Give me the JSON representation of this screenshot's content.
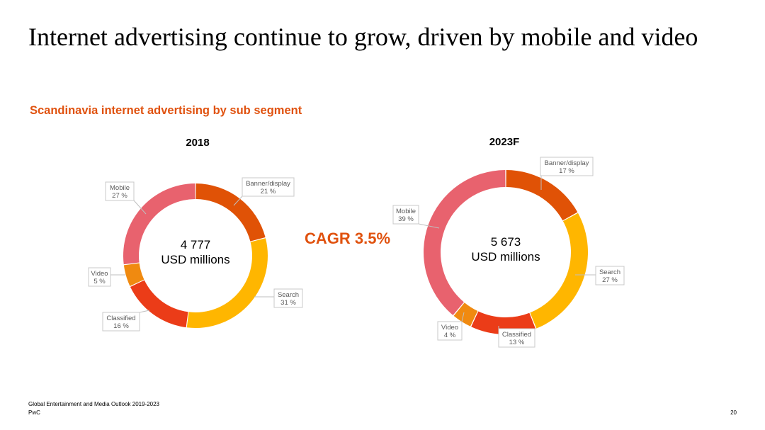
{
  "slide": {
    "title": "Internet advertising continue to grow, driven by mobile and video",
    "subtitle": "Scandinavia internet advertising by sub segment",
    "cagr": "CAGR 3.5%",
    "source": "Global Entertainment and Media Outlook 2019-2023",
    "brand": "PwC",
    "page_number": "20"
  },
  "colors": {
    "accent": "#e0520f",
    "banner_display": "#e05206",
    "search": "#ffb600",
    "classified": "#eb3c18",
    "video": "#f08a10",
    "mobile": "#e8626e"
  },
  "chart_data": [
    {
      "type": "pie",
      "subtype": "donut",
      "title": "2018",
      "center_value": "4 777",
      "center_unit": "USD millions",
      "slices": [
        {
          "label": "Banner/display",
          "value": 21,
          "value_label": "21 %",
          "color": "#e05206"
        },
        {
          "label": "Search",
          "value": 31,
          "value_label": "31 %",
          "color": "#ffb600"
        },
        {
          "label": "Classified",
          "value": 16,
          "value_label": "16 %",
          "color": "#eb3c18"
        },
        {
          "label": "Video",
          "value": 5,
          "value_label": "5 %",
          "color": "#f08a10"
        },
        {
          "label": "Mobile",
          "value": 27,
          "value_label": "27 %",
          "color": "#e8626e"
        }
      ]
    },
    {
      "type": "pie",
      "subtype": "donut",
      "title": "2023F",
      "center_value": "5 673",
      "center_unit": "USD millions",
      "slices": [
        {
          "label": "Banner/display",
          "value": 17,
          "value_label": "17 %",
          "color": "#e05206"
        },
        {
          "label": "Search",
          "value": 27,
          "value_label": "27 %",
          "color": "#ffb600"
        },
        {
          "label": "Classified",
          "value": 13,
          "value_label": "13 %",
          "color": "#eb3c18"
        },
        {
          "label": "Video",
          "value": 4,
          "value_label": "4 %",
          "color": "#f08a10"
        },
        {
          "label": "Mobile",
          "value": 39,
          "value_label": "39 %",
          "color": "#e8626e"
        }
      ]
    }
  ]
}
